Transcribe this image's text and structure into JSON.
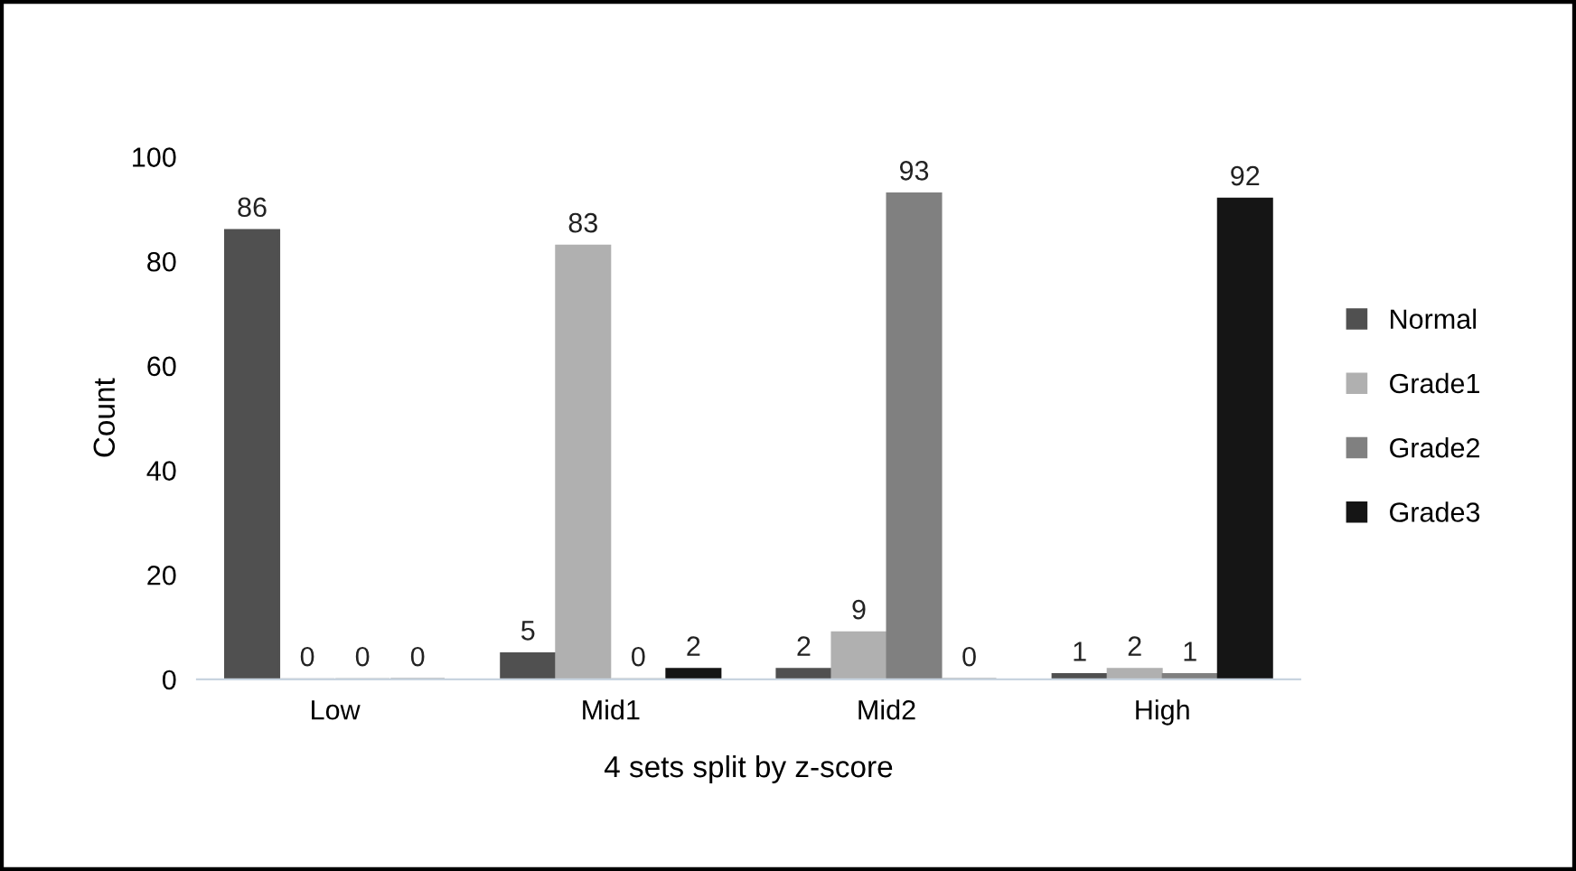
{
  "chart_data": {
    "type": "bar",
    "xlabel": "4 sets split by z-score",
    "ylabel": "Count",
    "categories": [
      "Low",
      "Mid1",
      "Mid2",
      "High"
    ],
    "series": [
      {
        "name": "Normal",
        "color": "#505050",
        "values": [
          86,
          5,
          2,
          1
        ]
      },
      {
        "name": "Grade1",
        "color": "#b0b0b0",
        "values": [
          0,
          83,
          9,
          2
        ]
      },
      {
        "name": "Grade2",
        "color": "#808080",
        "values": [
          0,
          0,
          93,
          1
        ]
      },
      {
        "name": "Grade3",
        "color": "#151515",
        "values": [
          0,
          2,
          0,
          92
        ]
      }
    ],
    "ylim": [
      0,
      100
    ],
    "yticks": [
      0,
      20,
      40,
      60,
      80,
      100
    ],
    "grid": false,
    "legend": "right",
    "data_labels": true
  }
}
